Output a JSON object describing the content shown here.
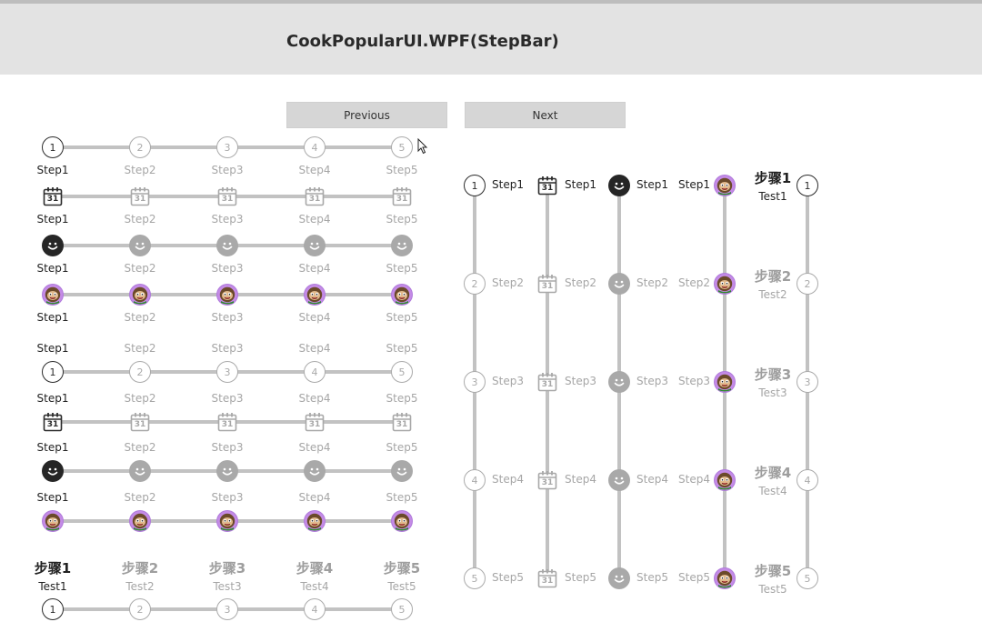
{
  "window": {
    "title": "CookPopularUI.WPF(StepBar)"
  },
  "buttons": {
    "previous": "Previous",
    "next": "Next"
  },
  "steps": [
    "Step1",
    "Step2",
    "Step3",
    "Step4",
    "Step5"
  ],
  "numbers": [
    "1",
    "2",
    "3",
    "4",
    "5"
  ],
  "calendar_day": "31",
  "zh_titles": [
    "步骤1",
    "步骤2",
    "步骤3",
    "步骤4",
    "步骤5"
  ],
  "zh_subtitles": [
    "Test1",
    "Test2",
    "Test3",
    "Test4",
    "Test5"
  ],
  "active_index": 0,
  "colors": {
    "active": "#222222",
    "inactive": "#aaaaaa",
    "track": "#c2c2c2",
    "header": "#e3e3e3",
    "avatar_ring": "#b07adb"
  },
  "icons": {
    "number": "numbered-circle-icon",
    "calendar": "calendar-icon",
    "smile": "smile-icon",
    "avatar": "avatar-icon"
  }
}
